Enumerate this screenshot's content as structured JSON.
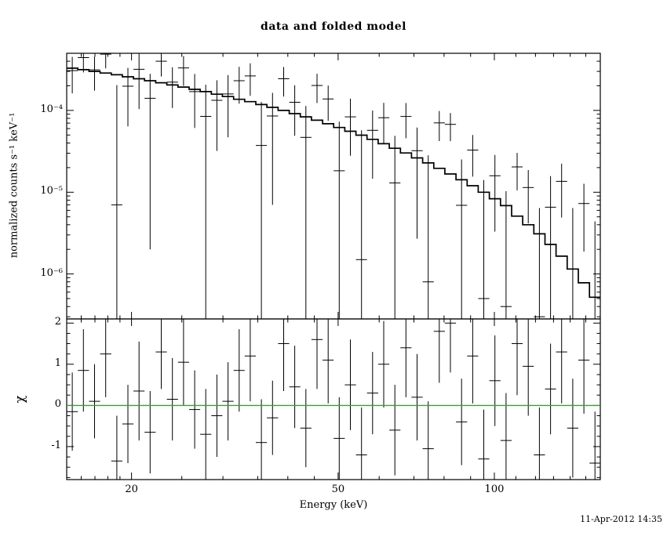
{
  "title": "data and folded model",
  "timestamp": "11-Apr-2012 14:35",
  "chart_data": {
    "type": "line",
    "title": "data and folded model",
    "xlabel": "Energy (keV)",
    "ylabel": "normalized counts s⁻¹ keV⁻¹",
    "ylabel_bottom": "χ",
    "x_scale": "log",
    "y_scale_top": "log",
    "y_scale_bottom": "linear",
    "grid": false,
    "legend": "none",
    "xlim": [
      15,
      160
    ],
    "ylim_top": [
      2.82e-07,
      0.0005
    ],
    "ylim_bottom": [
      -1.8,
      2.1
    ],
    "x_ticks": [
      {
        "value": 20,
        "label": "20"
      },
      {
        "value": 50,
        "label": "50"
      },
      {
        "value": 100,
        "label": "100"
      }
    ],
    "x_minor_ticks": [
      16,
      17,
      18,
      19,
      25,
      30,
      35,
      40,
      45,
      60,
      70,
      80,
      90,
      110,
      120,
      130,
      140,
      150
    ],
    "y_ticks": [
      {
        "value": 0.0001,
        "label": "10⁻⁴"
      },
      {
        "value": 1e-05,
        "label": "10⁻⁵"
      },
      {
        "value": 1e-06,
        "label": "10⁻⁶"
      }
    ],
    "chi_ticks": [
      {
        "value": 2,
        "label": "2"
      },
      {
        "value": 1,
        "label": "1"
      },
      {
        "value": 0,
        "label": "0"
      },
      {
        "value": -1,
        "label": "-1"
      }
    ],
    "colors": {
      "data": "#000000",
      "model": "#000000",
      "zero_line": "#00c800",
      "frame": "#000000",
      "background": "#ffffff"
    },
    "panels": [
      "spectrum",
      "residuals"
    ],
    "spectrum": {
      "bin_edges_kev": [
        15.0,
        15.76,
        16.56,
        17.4,
        18.28,
        19.2,
        20.17,
        21.19,
        22.26,
        23.39,
        24.57,
        25.82,
        27.12,
        28.49,
        29.93,
        31.45,
        33.04,
        34.71,
        36.46,
        38.31,
        40.25,
        42.28,
        44.42,
        46.67,
        49.03,
        51.51,
        54.11,
        56.85,
        59.72,
        62.74,
        65.92,
        69.25,
        72.75,
        76.43,
        80.29,
        84.35,
        88.62,
        93.1,
        97.81,
        102.75,
        107.95,
        113.41,
        119.14,
        125.17,
        131.5,
        138.14,
        145.13,
        152.47,
        160.18
      ],
      "model_counts": [
        0.000329,
        0.000315,
        0.0003,
        0.000287,
        0.000273,
        0.000258,
        0.000244,
        0.000231,
        0.000218,
        0.000205,
        0.000193,
        0.000181,
        0.00017,
        0.000158,
        0.000148,
        0.000137,
        0.000128,
        0.000118,
        0.000109,
        0.0001,
        9.15e-05,
        8.35e-05,
        7.59e-05,
        6.88e-05,
        6.19e-05,
        5.57e-05,
        4.98e-05,
        4.43e-05,
        3.92e-05,
        3.45e-05,
        3.02e-05,
        2.63e-05,
        2.28e-05,
        1.96e-05,
        1.67e-05,
        1.42e-05,
        1.2e-05,
        1e-05,
        8.32e-06,
        6.86e-06,
        5.1e-06,
        4e-06,
        3.1e-06,
        2.3e-06,
        1.65e-06,
        1.15e-06,
        7.8e-07,
        5.2e-07
      ],
      "data_counts": [
        0.000307,
        0.000443,
        0.000314,
        0.000488,
        7e-06,
        0.000198,
        0.000319,
        0.000141,
        0.0004,
        0.000222,
        0.000331,
        0.00017,
        8.46e-05,
        0.000133,
        0.000159,
        0.000231,
        0.000264,
        3.73e-05,
        8.55e-05,
        0.000244,
        0.000126,
        4.68e-05,
        0.000202,
        0.000138,
        1.83e-05,
        8.36e-05,
        1.5e-06,
        5.71e-05,
        8.15e-05,
        1.3e-05,
        8.44e-05,
        3.22e-05,
        8e-07,
        7.04e-05,
        6.75e-05,
        6.92e-06,
        3.28e-05,
        5e-07,
        1.59e-05,
        4e-07,
        2.04e-05,
        1.14e-05,
        3e-07,
        6.56e-06,
        1.36e-05,
        2e-07,
        7.28e-06,
        2e-07
      ],
      "data_err": [
        0.000145,
        0.000151,
        0.000139,
        0.000161,
        0.000197,
        0.000134,
        0.000215,
        0.000139,
        0.00014,
        0.000115,
        0.000131,
        0.000109,
        0.000122,
        0.000101,
        0.000112,
        0.00011,
        0.000113,
        8.97e-05,
        7.85e-05,
        9.6e-05,
        7.69e-05,
        6.68e-05,
        7.89e-05,
        6.33e-05,
        5.45e-05,
        5.57e-05,
        5.58e-05,
        4.25e-05,
        4.23e-05,
        3.59e-05,
        3.87e-05,
        2.95e-05,
        2.74e-05,
        2.82e-05,
        2.54e-05,
        1.82e-05,
        1.73e-05,
        1.36e-05,
        1.26e-05,
        9.88e-06,
        9.86e-06,
        7.25e-06,
        6.1e-06,
        9.2e-06,
        8.7e-06,
        6.2e-06,
        5.4e-06,
        4.2e-06
      ]
    },
    "residuals": {
      "chi": [
        -0.15,
        0.85,
        0.1,
        1.25,
        -1.35,
        -0.45,
        0.35,
        -0.65,
        1.3,
        0.15,
        1.05,
        -0.1,
        -0.7,
        -0.25,
        0.1,
        0.85,
        1.2,
        -0.9,
        -0.3,
        1.5,
        0.45,
        -0.55,
        1.6,
        1.1,
        -0.8,
        0.5,
        -1.2,
        0.3,
        1.0,
        -0.6,
        1.4,
        0.2,
        -1.05,
        1.8,
        2.0,
        -0.4,
        1.2,
        -1.3,
        0.6,
        -0.85,
        1.5,
        0.95,
        -1.2,
        0.4,
        1.3,
        -0.55,
        1.1,
        -1.4
      ],
      "chi_err": [
        0.95,
        1.0,
        0.9,
        1.05,
        1.1,
        0.95,
        1.2,
        1.0,
        0.9,
        1.0,
        1.05,
        0.95,
        1.1,
        1.0,
        0.95,
        1.0,
        1.1,
        1.05,
        0.9,
        1.15,
        1.0,
        0.95,
        1.2,
        1.05,
        1.0,
        1.1,
        1.15,
        1.0,
        1.05,
        1.1,
        1.2,
        1.05,
        1.15,
        1.25,
        1.2,
        1.05,
        1.15,
        1.2,
        1.1,
        1.15,
        1.25,
        1.2,
        1.15,
        1.1,
        1.25,
        1.2,
        1.3,
        1.25
      ]
    }
  }
}
